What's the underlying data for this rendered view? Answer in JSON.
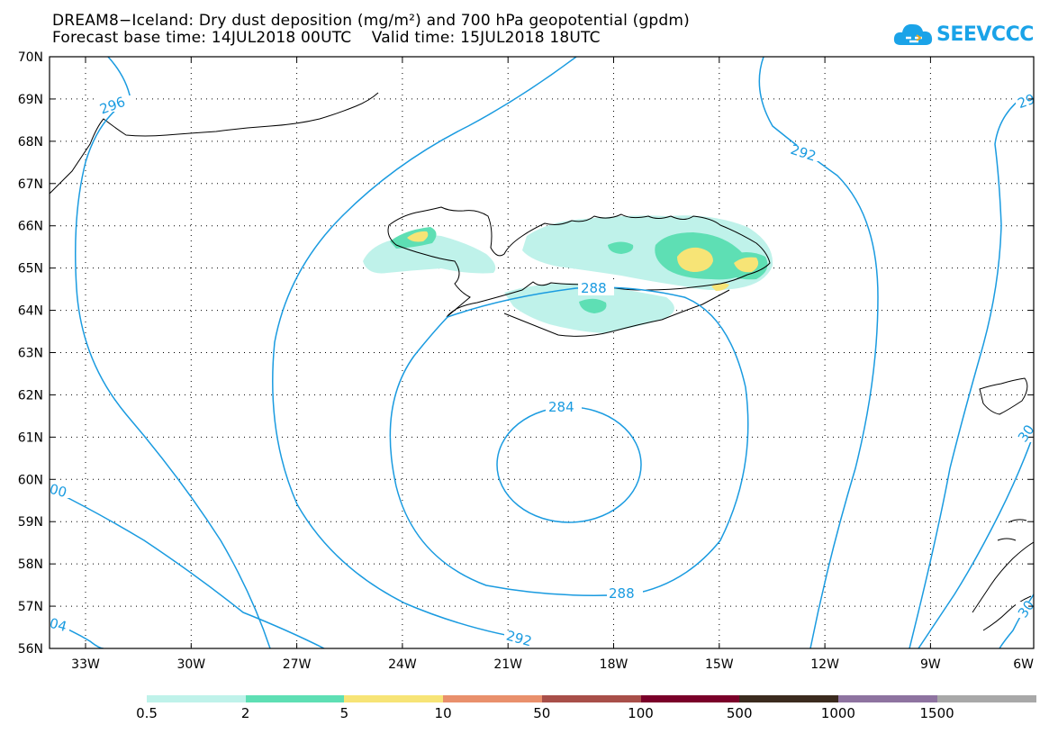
{
  "header": {
    "title_line1": "DREAM8−Iceland: Dry dust deposition (mg/m²) and 700 hPa geopotential (gpdm)",
    "title_line2": "Forecast base time: 14JUL2018 00UTC    Valid time: 15JUL2018 18UTC"
  },
  "logo": {
    "text": "SEEVCCC",
    "color": "#1aa3e8"
  },
  "map": {
    "lat_labels": [
      "70N",
      "69N",
      "68N",
      "67N",
      "66N",
      "65N",
      "64N",
      "63N",
      "62N",
      "61N",
      "60N",
      "59N",
      "58N",
      "57N",
      "56N"
    ],
    "lon_labels": [
      "33W",
      "30W",
      "27W",
      "24W",
      "21W",
      "18W",
      "15W",
      "12W",
      "9W",
      "6W"
    ],
    "contour_color": "#1a9be0",
    "contour_labels": {
      "c296": "296",
      "c292_ne": "292",
      "c29_edge": "29",
      "c288_top": "288",
      "c284": "284",
      "c288_bottom": "288",
      "c292_bottom": "292",
      "c00": "00",
      "c30": "30",
      "c04": "04",
      "c30_se": "30"
    }
  },
  "legend": {
    "colors": [
      "#bff2ea",
      "#5edfb4",
      "#f7e476",
      "#e9906c",
      "#a84f49",
      "#7a0029",
      "#3b2b1e",
      "#8e73a0",
      "#a8a8a8"
    ],
    "labels": [
      "0.5",
      "2",
      "5",
      "10",
      "50",
      "100",
      "500",
      "1000",
      "1500"
    ]
  }
}
